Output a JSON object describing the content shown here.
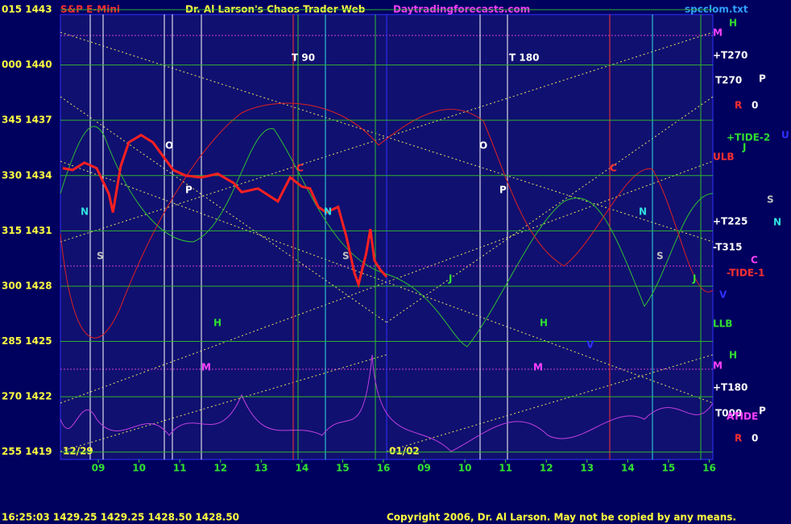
{
  "chart_data": {
    "type": "line",
    "title": "Dr. Al Larson's Chaos Trader Web",
    "symbol": "S&P E-Mini",
    "site": "Daytradingforecasts.com",
    "file": "spcclom.txt",
    "status": "16:25:03  1429.25  1429.25  1428.50  1428.50",
    "copyright": "Copyright 2006, Dr. Al Larson. May not be copied by any means.",
    "date_labels": [
      "12/29",
      "01/02"
    ],
    "color": "#ff2020",
    "x": [
      -0.87,
      -0.63,
      -0.34,
      -0.04,
      0.26,
      0.36,
      0.55,
      0.75,
      1.05,
      1.34,
      1.54,
      1.84,
      2.14,
      2.53,
      2.93,
      3.32,
      3.52,
      3.92,
      4.41,
      4.71,
      5.0,
      5.2,
      5.4,
      5.6,
      5.89,
      6.09,
      6.29,
      6.39,
      6.58,
      6.68,
      6.78,
      6.92,
      7.08
    ],
    "values": [
      1434.4,
      1434.3,
      1434.7,
      1434.4,
      1433.0,
      1432.0,
      1434.5,
      1435.8,
      1436.2,
      1435.8,
      1435.2,
      1434.3,
      1434.0,
      1433.9,
      1434.1,
      1433.6,
      1433.1,
      1433.3,
      1432.6,
      1433.9,
      1433.4,
      1433.3,
      1432.3,
      1432.0,
      1432.3,
      1430.7,
      1428.7,
      1428.1,
      1429.8,
      1431.1,
      1429.4,
      1428.9,
      1428.5
    ],
    "xlim": [
      -0.93,
      15.09
    ],
    "xticks": [
      {
        "value": 0,
        "label": "09"
      },
      {
        "value": 1,
        "label": "10"
      },
      {
        "value": 2,
        "label": "11"
      },
      {
        "value": 3,
        "label": "12"
      },
      {
        "value": 4,
        "label": "13"
      },
      {
        "value": 5,
        "label": "14"
      },
      {
        "value": 6,
        "label": "15"
      },
      {
        "value": 7,
        "label": "16"
      },
      {
        "value": 8,
        "label": "09"
      },
      {
        "value": 9,
        "label": "10"
      },
      {
        "value": 10,
        "label": "11"
      },
      {
        "value": 11,
        "label": "12"
      },
      {
        "value": 12,
        "label": "13"
      },
      {
        "value": 13,
        "label": "14"
      },
      {
        "value": 14,
        "label": "15"
      },
      {
        "value": 15,
        "label": "16"
      }
    ],
    "ylim": [
      1418.8,
      1443
    ],
    "yticks": [
      {
        "value": 1443,
        "label": "015 1443"
      },
      {
        "value": 1440,
        "label": "000 1440"
      },
      {
        "value": 1437,
        "label": "345 1437"
      },
      {
        "value": 1434,
        "label": "330 1434"
      },
      {
        "value": 1431,
        "label": "315 1431"
      },
      {
        "value": 1428,
        "label": "300 1428"
      },
      {
        "value": 1425,
        "label": "285 1425"
      },
      {
        "value": 1422,
        "label": "270 1422"
      },
      {
        "value": 1419,
        "label": "255 1419"
      }
    ],
    "grid": true,
    "annotations": [
      "H",
      "M",
      "+T270",
      "T270",
      "P",
      "R",
      "0",
      "+TIDE-2",
      "J",
      "U",
      "ULB",
      "S",
      "+T225",
      "N",
      "-T315",
      "C",
      "-TIDE-1",
      "V",
      "LLB",
      "H",
      "M",
      "+T180",
      "T000",
      "ATIDE",
      "P",
      "R",
      "0",
      "T 90",
      "T 180",
      "O",
      "P",
      "O",
      "P",
      "N",
      "S",
      "C",
      "N",
      "S",
      "C",
      "N",
      "S",
      "H",
      "M",
      "H",
      "M",
      "J",
      "J",
      "V"
    ]
  }
}
